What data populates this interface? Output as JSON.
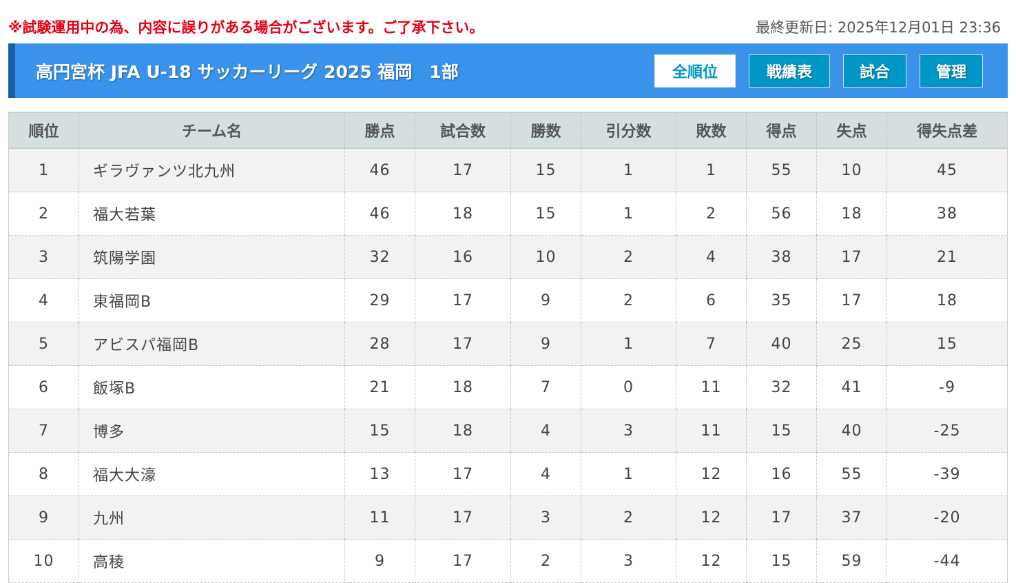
{
  "notice": "※試験運用中の為、内容に誤りがある場合がございます。ご了承下さい。",
  "updated": "最終更新日: 2025年12月01日 23:36",
  "header": {
    "title": "高円宮杯 JFA U-18 サッカーリーグ 2025 福岡　1部",
    "buttons": [
      "全順位",
      "戦績表",
      "試合",
      "管理"
    ],
    "active": "全順位"
  },
  "colors": {
    "header_bg": "#3a93ea",
    "button_bg": "#0097c8",
    "notice": "#e60012"
  },
  "table": {
    "columns": [
      "順位",
      "チーム名",
      "勝点",
      "試合数",
      "勝数",
      "引分数",
      "敗数",
      "得点",
      "失点",
      "得失点差"
    ],
    "rows": [
      [
        "1",
        "ギラヴァンツ北九州",
        "46",
        "17",
        "15",
        "1",
        "1",
        "55",
        "10",
        "45"
      ],
      [
        "2",
        "福大若葉",
        "46",
        "18",
        "15",
        "1",
        "2",
        "56",
        "18",
        "38"
      ],
      [
        "3",
        "筑陽学園",
        "32",
        "16",
        "10",
        "2",
        "4",
        "38",
        "17",
        "21"
      ],
      [
        "4",
        "東福岡B",
        "29",
        "17",
        "9",
        "2",
        "6",
        "35",
        "17",
        "18"
      ],
      [
        "5",
        "アビスパ福岡B",
        "28",
        "17",
        "9",
        "1",
        "7",
        "40",
        "25",
        "15"
      ],
      [
        "6",
        "飯塚B",
        "21",
        "18",
        "7",
        "0",
        "11",
        "32",
        "41",
        "-9"
      ],
      [
        "7",
        "博多",
        "15",
        "18",
        "4",
        "3",
        "11",
        "15",
        "40",
        "-25"
      ],
      [
        "8",
        "福大大濠",
        "13",
        "17",
        "4",
        "1",
        "12",
        "16",
        "55",
        "-39"
      ],
      [
        "9",
        "九州",
        "11",
        "17",
        "3",
        "2",
        "12",
        "17",
        "37",
        "-20"
      ],
      [
        "10",
        "高稜",
        "9",
        "17",
        "2",
        "3",
        "12",
        "15",
        "59",
        "-44"
      ]
    ]
  }
}
